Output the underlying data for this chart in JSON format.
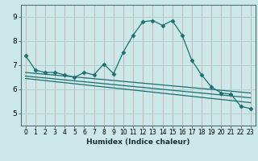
{
  "xlabel": "Humidex (Indice chaleur)",
  "bg_color": "#cce8e8",
  "grid_color": "#aacccc",
  "line_color": "#1a7070",
  "xlim": [
    -0.5,
    23.5
  ],
  "ylim": [
    4.5,
    9.5
  ],
  "xticks": [
    0,
    1,
    2,
    3,
    4,
    5,
    6,
    7,
    8,
    9,
    10,
    11,
    12,
    13,
    14,
    15,
    16,
    17,
    18,
    19,
    20,
    21,
    22,
    23
  ],
  "yticks": [
    5,
    6,
    7,
    8,
    9
  ],
  "series": [
    {
      "x": [
        0,
        1,
        2,
        3,
        4,
        5,
        6,
        7,
        8,
        9,
        10,
        11,
        12,
        13,
        14,
        15,
        16,
        17,
        18,
        19,
        20,
        21,
        22,
        23
      ],
      "y": [
        7.4,
        6.8,
        6.7,
        6.7,
        6.6,
        6.5,
        6.7,
        6.6,
        7.05,
        6.65,
        7.55,
        8.25,
        8.8,
        8.85,
        8.65,
        8.85,
        8.25,
        7.2,
        6.6,
        6.1,
        5.85,
        5.8,
        5.3,
        5.2
      ],
      "marker": "D",
      "markersize": 2.5
    },
    {
      "x": [
        0,
        23
      ],
      "y": [
        6.7,
        5.85
      ],
      "marker": null
    },
    {
      "x": [
        0,
        23
      ],
      "y": [
        6.55,
        5.65
      ],
      "marker": null
    },
    {
      "x": [
        0,
        23
      ],
      "y": [
        6.45,
        5.45
      ],
      "marker": null
    }
  ]
}
